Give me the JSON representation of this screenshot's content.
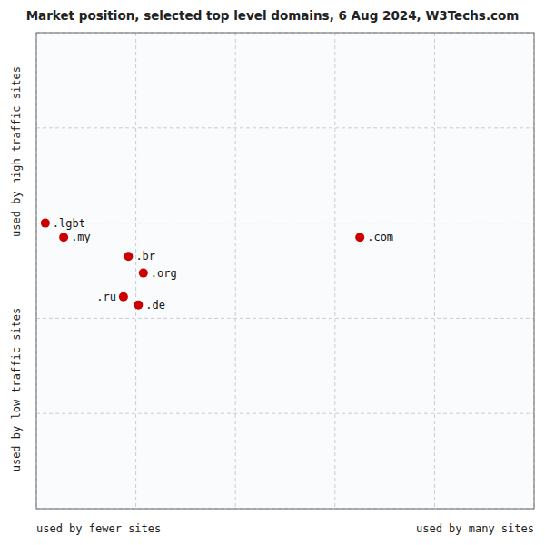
{
  "chart_data": {
    "type": "scatter",
    "title": "Market position, selected top level domains, 6 Aug 2024, W3Techs.com",
    "xlabel_left": "used by fewer sites",
    "xlabel_right": "used by many sites",
    "ylabel_top": "used by high traffic sites",
    "ylabel_bottom": "used by low traffic sites",
    "labels": [
      ".lgbt",
      ".my",
      ".br",
      ".org",
      ".ru",
      ".de",
      ".com"
    ],
    "x": [
      0.18,
      0.55,
      1.85,
      2.15,
      1.75,
      2.05,
      6.5
    ],
    "values": [
      6.0,
      5.7,
      5.3,
      4.95,
      4.45,
      4.28,
      5.7
    ],
    "color": "#cc0000",
    "xlim": [
      0,
      10
    ],
    "ylim": [
      0,
      10
    ],
    "xticks": [
      0,
      2,
      4,
      6,
      8,
      10
    ],
    "yticks": [
      0,
      2,
      4,
      6,
      8,
      10
    ],
    "grid": true,
    "tick_labels": false
  }
}
